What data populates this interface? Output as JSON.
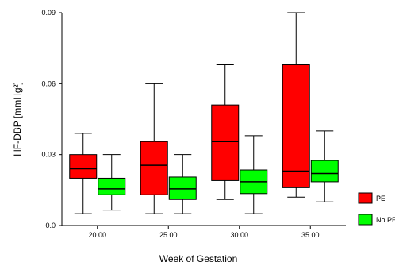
{
  "chart_data": {
    "type": "boxplot",
    "xlabel": "Week of Gestation",
    "ylabel": "HF-DBP [mmHg²]",
    "ylim": [
      0,
      0.09
    ],
    "yticks": [
      "0.0",
      "0.03",
      "0.06",
      "0.09"
    ],
    "ytick_values": [
      0,
      0.03,
      0.06,
      0.09
    ],
    "categories": [
      "20.00",
      "25.00",
      "30.00",
      "35.00"
    ],
    "series": [
      {
        "name": "PE",
        "color": "#ff0000",
        "boxes": [
          {
            "whisker_low": 0.005,
            "q1": 0.02,
            "median": 0.024,
            "q3": 0.03,
            "whisker_high": 0.039
          },
          {
            "whisker_low": 0.005,
            "q1": 0.013,
            "median": 0.0255,
            "q3": 0.0355,
            "whisker_high": 0.06
          },
          {
            "whisker_low": 0.011,
            "q1": 0.019,
            "median": 0.0355,
            "q3": 0.051,
            "whisker_high": 0.068
          },
          {
            "whisker_low": 0.012,
            "q1": 0.016,
            "median": 0.023,
            "q3": 0.068,
            "whisker_high": 0.09
          }
        ]
      },
      {
        "name": "No PE",
        "color": "#00ff00",
        "boxes": [
          {
            "whisker_low": 0.0065,
            "q1": 0.013,
            "median": 0.0155,
            "q3": 0.02,
            "whisker_high": 0.03
          },
          {
            "whisker_low": 0.005,
            "q1": 0.011,
            "median": 0.0155,
            "q3": 0.0205,
            "whisker_high": 0.03
          },
          {
            "whisker_low": 0.005,
            "q1": 0.0135,
            "median": 0.0185,
            "q3": 0.0235,
            "whisker_high": 0.038
          },
          {
            "whisker_low": 0.01,
            "q1": 0.0185,
            "median": 0.022,
            "q3": 0.0275,
            "whisker_high": 0.04
          }
        ]
      }
    ],
    "legend_position": "bottom-right",
    "grid": false
  }
}
